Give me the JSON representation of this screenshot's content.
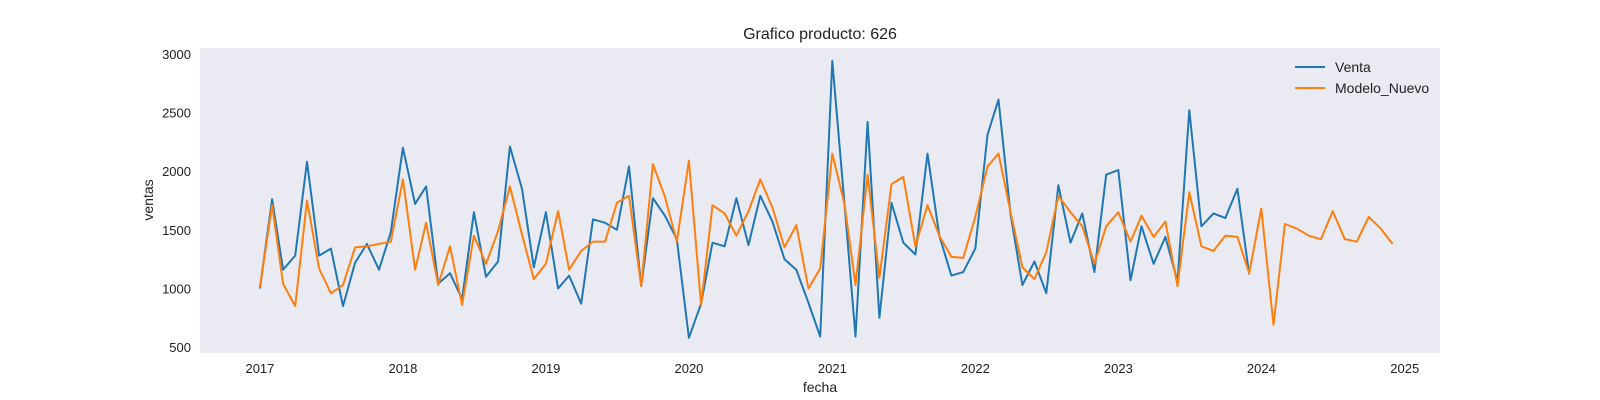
{
  "chart_data": {
    "type": "line",
    "title": "Grafico producto: 626",
    "xlabel": "fecha",
    "ylabel": "ventas",
    "xlim": [
      "2016-08-01",
      "2025-04-01"
    ],
    "ylim": [
      450,
      3050
    ],
    "x_ticks": [
      "2017",
      "2018",
      "2019",
      "2020",
      "2021",
      "2022",
      "2023",
      "2024",
      "2025"
    ],
    "y_ticks": [
      500,
      1000,
      1500,
      2000,
      2500,
      3000
    ],
    "grid": false,
    "background": "#eaeaf2",
    "legend": {
      "position": "top-right",
      "entries": [
        "Venta",
        "Modelo_Nuevo"
      ]
    },
    "series": [
      {
        "name": "Venta",
        "color": "#1f77b4",
        "start": "2017-01",
        "values": [
          1000,
          1760,
          1160,
          1280,
          2080,
          1280,
          1340,
          850,
          1220,
          1380,
          1160,
          1480,
          2200,
          1720,
          1870,
          1040,
          1130,
          910,
          1650,
          1100,
          1230,
          2210,
          1850,
          1180,
          1650,
          1000,
          1110,
          870,
          1590,
          1560,
          1500,
          2040,
          1020,
          1770,
          1620,
          1420,
          580,
          870,
          1390,
          1360,
          1770,
          1370,
          1790,
          1570,
          1250,
          1160,
          880,
          590,
          2940,
          1720,
          590,
          2420,
          750,
          1730,
          1390,
          1290,
          2150,
          1450,
          1110,
          1140,
          1340,
          2310,
          2610,
          1630,
          1030,
          1230,
          960,
          1880,
          1390,
          1640,
          1140,
          1970,
          2010,
          1070,
          1530,
          1210,
          1440,
          1060,
          2520,
          1530,
          1640,
          1600,
          1850,
          1120
        ]
      },
      {
        "name": "Modelo_Nuevo",
        "color": "#ff7f0e",
        "start": "2017-01",
        "values": [
          1010,
          1710,
          1040,
          850,
          1750,
          1170,
          960,
          1030,
          1350,
          1360,
          1380,
          1400,
          1930,
          1160,
          1560,
          1030,
          1360,
          860,
          1450,
          1210,
          1490,
          1870,
          1460,
          1080,
          1210,
          1660,
          1160,
          1320,
          1400,
          1400,
          1730,
          1790,
          1020,
          2060,
          1780,
          1400,
          2090,
          860,
          1710,
          1640,
          1450,
          1660,
          1930,
          1690,
          1350,
          1540,
          1000,
          1170,
          2150,
          1720,
          1030,
          1970,
          1090,
          1890,
          1950,
          1360,
          1710,
          1450,
          1270,
          1260,
          1610,
          2040,
          2150,
          1650,
          1180,
          1080,
          1310,
          1790,
          1650,
          1530,
          1210,
          1530,
          1650,
          1400,
          1620,
          1440,
          1570,
          1020,
          1820,
          1360,
          1320,
          1450,
          1440,
          1130,
          1680,
          690,
          1550,
          1510,
          1450,
          1420,
          1660,
          1420,
          1400,
          1610,
          1510,
          1380
        ]
      }
    ]
  }
}
